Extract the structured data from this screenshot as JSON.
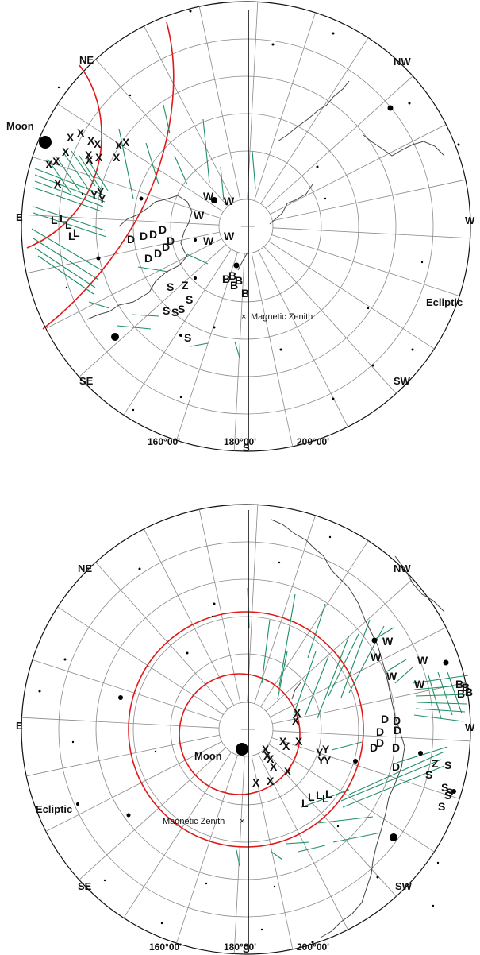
{
  "colors": {
    "grid": "#8a8a8a",
    "coast": "#444444",
    "meridian": "#000000",
    "ecliptic_circle": "#e01818",
    "meteor_trail": "#1f8f64",
    "star": "#000000"
  },
  "panels": [
    {
      "id": "top",
      "directions": {
        "NE": "NE",
        "NW": "NW",
        "E": "E",
        "W": "W",
        "SE": "SE",
        "SW": "SW",
        "S": "S"
      },
      "labels": {
        "moon": "Moon",
        "ecliptic": "Ecliptic",
        "magnetic_zenith": "Magnetic Zenith"
      },
      "ticks": [
        "160°00'",
        "180°00'",
        "200°00'"
      ],
      "codes": [
        {
          "t": "X"
        },
        {
          "t": "X"
        },
        {
          "t": "X"
        },
        {
          "t": "X"
        },
        {
          "t": "X"
        },
        {
          "t": "X"
        },
        {
          "t": "X"
        },
        {
          "t": "X"
        },
        {
          "t": "X"
        },
        {
          "t": "X"
        },
        {
          "t": "X"
        },
        {
          "t": "X"
        },
        {
          "t": "X"
        },
        {
          "t": "X"
        },
        {
          "t": "Y"
        },
        {
          "t": "Y"
        },
        {
          "t": "Y"
        },
        {
          "t": "L"
        },
        {
          "t": "L"
        },
        {
          "t": "L"
        },
        {
          "t": "L"
        },
        {
          "t": "L"
        },
        {
          "t": "W"
        },
        {
          "t": "W"
        },
        {
          "t": "W"
        },
        {
          "t": "W"
        },
        {
          "t": "W"
        },
        {
          "t": "D"
        },
        {
          "t": "D"
        },
        {
          "t": "D"
        },
        {
          "t": "D"
        },
        {
          "t": "D"
        },
        {
          "t": "D"
        },
        {
          "t": "D"
        },
        {
          "t": "D"
        },
        {
          "t": "B"
        },
        {
          "t": "B"
        },
        {
          "t": "B"
        },
        {
          "t": "B"
        },
        {
          "t": "B"
        },
        {
          "t": "S"
        },
        {
          "t": "Z"
        },
        {
          "t": "S"
        },
        {
          "t": "S"
        },
        {
          "t": "S"
        },
        {
          "t": "S"
        },
        {
          "t": "S"
        }
      ]
    },
    {
      "id": "bottom",
      "directions": {
        "NE": "NE",
        "NW": "NW",
        "E": "E",
        "W": "W",
        "SE": "SE",
        "SW": "SW",
        "S": "S"
      },
      "labels": {
        "moon": "Moon",
        "ecliptic": "Ecliptic",
        "magnetic_zenith": "Magnetic Zenith"
      },
      "ticks": [
        "160°00'",
        "180°00'",
        "200°00'"
      ],
      "codes": [
        {
          "t": "X"
        },
        {
          "t": "X"
        },
        {
          "t": "X"
        },
        {
          "t": "X"
        },
        {
          "t": "X"
        },
        {
          "t": "X"
        },
        {
          "t": "X"
        },
        {
          "t": "X"
        },
        {
          "t": "X"
        },
        {
          "t": "X"
        },
        {
          "t": "X"
        },
        {
          "t": "X"
        },
        {
          "t": "Y"
        },
        {
          "t": "Y"
        },
        {
          "t": "Y"
        },
        {
          "t": "Y"
        },
        {
          "t": "L"
        },
        {
          "t": "L"
        },
        {
          "t": "L"
        },
        {
          "t": "L"
        },
        {
          "t": "L"
        },
        {
          "t": "W"
        },
        {
          "t": "W"
        },
        {
          "t": "W"
        },
        {
          "t": "W"
        },
        {
          "t": "W"
        },
        {
          "t": "D"
        },
        {
          "t": "D"
        },
        {
          "t": "D"
        },
        {
          "t": "D"
        },
        {
          "t": "D"
        },
        {
          "t": "D"
        },
        {
          "t": "D"
        },
        {
          "t": "D"
        },
        {
          "t": "B"
        },
        {
          "t": "B"
        },
        {
          "t": "B"
        },
        {
          "t": "B"
        },
        {
          "t": "S"
        },
        {
          "t": "Z"
        },
        {
          "t": "S"
        },
        {
          "t": "S"
        },
        {
          "t": "S"
        },
        {
          "t": "S"
        },
        {
          "t": "S"
        }
      ]
    }
  ]
}
